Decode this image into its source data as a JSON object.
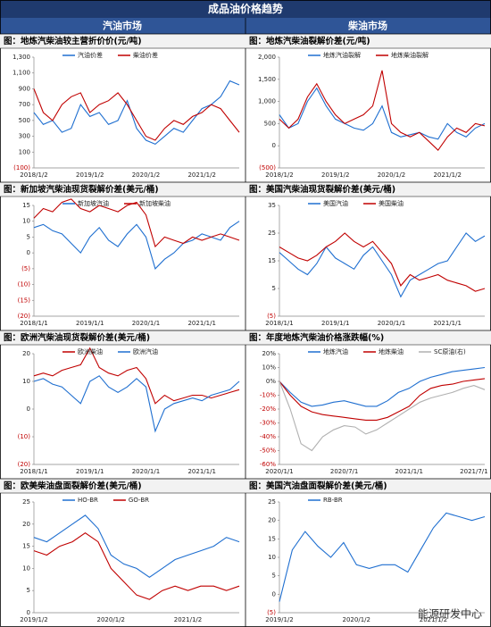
{
  "header": {
    "title": "成品油价格趋势",
    "columns": [
      "汽油市场",
      "柴油市场"
    ]
  },
  "watermark": "能源研发中心",
  "chart_data": [
    {
      "type": "line",
      "title": "图：地炼汽柴油较主营折价价(元/吨)",
      "categories": [
        "2018/1/2",
        null,
        null,
        null,
        null,
        null,
        "2019/1/2",
        null,
        null,
        null,
        null,
        null,
        "2020/1/2",
        null,
        null,
        null,
        null,
        null,
        "2021/1/2",
        null,
        null,
        null,
        null
      ],
      "series": [
        {
          "name": "汽油价差",
          "color": "#1f6fd0",
          "values": [
            600,
            450,
            500,
            350,
            400,
            700,
            550,
            600,
            450,
            500,
            750,
            400,
            250,
            200,
            300,
            400,
            350,
            500,
            650,
            700,
            800,
            1000,
            950
          ]
        },
        {
          "name": "柴油价差",
          "color": "#c00000",
          "values": [
            900,
            600,
            500,
            700,
            800,
            850,
            600,
            700,
            750,
            850,
            700,
            500,
            300,
            250,
            400,
            500,
            450,
            550,
            600,
            700,
            650,
            500,
            350
          ]
        }
      ],
      "ylim": [
        -100,
        1300
      ],
      "yticks": [
        {
          "value": -100,
          "label": "(100)"
        },
        100,
        300,
        500,
        700,
        900,
        {
          "value": 1100,
          "label": "1,100"
        },
        {
          "value": 1300,
          "label": "1,300"
        }
      ]
    },
    {
      "type": "line",
      "title": "图：地炼汽柴油裂解价差(元/吨)",
      "categories": [
        "2018/1/2",
        null,
        null,
        null,
        null,
        null,
        "2019/1/2",
        null,
        null,
        null,
        null,
        null,
        "2020/1/2",
        null,
        null,
        null,
        null,
        null,
        "2021/1/2",
        null,
        null,
        null,
        null
      ],
      "series": [
        {
          "name": "地炼汽油裂解",
          "color": "#1f6fd0",
          "values": [
            700,
            400,
            500,
            1000,
            1300,
            900,
            600,
            500,
            400,
            350,
            500,
            900,
            300,
            200,
            250,
            300,
            200,
            150,
            500,
            300,
            200,
            400,
            500
          ]
        },
        {
          "name": "地炼柴油裂解",
          "color": "#c00000",
          "values": [
            600,
            400,
            600,
            1100,
            1400,
            1000,
            700,
            500,
            600,
            700,
            900,
            1700,
            500,
            300,
            200,
            300,
            100,
            -100,
            200,
            400,
            300,
            500,
            450
          ]
        }
      ],
      "ylim": [
        -500,
        2000
      ],
      "yticks": [
        {
          "value": -500,
          "label": "(500)"
        },
        0,
        500,
        {
          "value": 1000,
          "label": "1,000"
        },
        {
          "value": 1500,
          "label": "1,500"
        },
        {
          "value": 2000,
          "label": "2,000"
        }
      ]
    },
    {
      "type": "line",
      "title": "图：新加坡汽柴油现货裂解价差(美元/桶)",
      "categories": [
        "2018/1/1",
        null,
        null,
        null,
        null,
        null,
        "2019/1/1",
        null,
        null,
        null,
        null,
        null,
        "2020/1/1",
        null,
        null,
        null,
        null,
        null,
        "2021/1/1",
        null,
        null,
        null,
        null
      ],
      "series": [
        {
          "name": "新加坡汽油",
          "color": "#1f6fd0",
          "values": [
            8,
            9,
            7,
            6,
            3,
            0,
            5,
            8,
            4,
            2,
            6,
            9,
            5,
            -5,
            -2,
            0,
            3,
            4,
            6,
            5,
            4,
            8,
            10
          ]
        },
        {
          "name": "新加坡柴油",
          "color": "#c00000",
          "values": [
            11,
            14,
            13,
            16,
            17,
            14,
            13,
            15,
            14,
            13,
            15,
            16,
            12,
            2,
            5,
            4,
            3,
            5,
            4,
            5,
            6,
            5,
            4
          ]
        }
      ],
      "ylim": [
        -20,
        15
      ],
      "yticks": [
        {
          "value": -20,
          "label": "(20)"
        },
        {
          "value": -15,
          "label": "(15)"
        },
        {
          "value": -10,
          "label": "(10)"
        },
        {
          "value": -5,
          "label": "(5)"
        },
        0,
        5,
        10,
        15
      ]
    },
    {
      "type": "line",
      "title": "图：美国汽柴油现货裂解价差(美元/桶)",
      "categories": [
        "2018/1/1",
        null,
        null,
        null,
        null,
        null,
        "2019/1/1",
        null,
        null,
        null,
        null,
        null,
        "2020/1/1",
        null,
        null,
        null,
        null,
        null,
        "2021/1/1",
        null,
        null,
        null,
        null
      ],
      "series": [
        {
          "name": "美国汽油",
          "color": "#1f6fd0",
          "values": [
            18,
            15,
            12,
            10,
            14,
            20,
            16,
            14,
            12,
            17,
            20,
            15,
            10,
            2,
            8,
            10,
            12,
            14,
            15,
            20,
            25,
            22,
            24
          ]
        },
        {
          "name": "美国柴油",
          "color": "#c00000",
          "values": [
            20,
            18,
            16,
            15,
            17,
            20,
            22,
            25,
            22,
            20,
            22,
            18,
            14,
            6,
            10,
            8,
            9,
            10,
            8,
            7,
            6,
            4,
            5
          ]
        }
      ],
      "ylim": [
        -5,
        35
      ],
      "yticks": [
        {
          "value": -5,
          "label": "(5)"
        },
        5,
        15,
        25,
        35
      ]
    },
    {
      "type": "line",
      "title": "图：欧洲汽柴油现货裂解价差(美元/桶)",
      "categories": [
        "2018/1/1",
        null,
        null,
        null,
        null,
        null,
        "2019/1/1",
        null,
        null,
        null,
        null,
        null,
        "2020/1/1",
        null,
        null,
        null,
        null,
        null,
        "2021/1/1",
        null,
        null,
        null,
        null
      ],
      "series": [
        {
          "name": "欧洲柴油",
          "color": "#c00000",
          "values": [
            12,
            13,
            12,
            14,
            15,
            16,
            22,
            15,
            13,
            12,
            14,
            15,
            11,
            2,
            5,
            3,
            4,
            5,
            5,
            4,
            5,
            6,
            7
          ]
        },
        {
          "name": "欧洲汽油",
          "color": "#1f6fd0",
          "values": [
            10,
            11,
            9,
            8,
            5,
            2,
            10,
            12,
            8,
            6,
            8,
            11,
            8,
            -8,
            0,
            2,
            3,
            4,
            3,
            5,
            6,
            7,
            10
          ]
        }
      ],
      "ylim": [
        -20,
        20
      ],
      "yticks": [
        {
          "value": -20,
          "label": "(20)"
        },
        {
          "value": -10,
          "label": "(10)"
        },
        0,
        10,
        20
      ]
    },
    {
      "type": "line",
      "title": "图：年度地炼汽柴油价格涨跌幅(%)",
      "categories": [
        "2020/1/1",
        null,
        null,
        null,
        null,
        null,
        "2020/7/1",
        null,
        null,
        null,
        null,
        null,
        "2021/1/1",
        null,
        null,
        null,
        null,
        null,
        "2021/7/1",
        null
      ],
      "series": [
        {
          "name": "地炼汽油",
          "color": "#1f6fd0",
          "values": [
            0,
            -8,
            -15,
            -18,
            -17,
            -15,
            -14,
            -16,
            -18,
            -18,
            -14,
            -8,
            -5,
            0,
            3,
            5,
            7,
            8,
            9,
            10
          ]
        },
        {
          "name": "地炼柴油",
          "color": "#c00000",
          "values": [
            0,
            -10,
            -18,
            -22,
            -24,
            -25,
            -26,
            -27,
            -28,
            -28,
            -26,
            -22,
            -18,
            -10,
            -5,
            -3,
            -2,
            0,
            1,
            2
          ]
        },
        {
          "name": "SC原油(右)",
          "color": "#b0b0b0",
          "values": [
            0,
            -20,
            -45,
            -50,
            -40,
            -35,
            -32,
            -33,
            -38,
            -35,
            -30,
            -25,
            -20,
            -15,
            -12,
            -10,
            -8,
            -5,
            -3,
            -6
          ]
        }
      ],
      "ylim": [
        -60,
        20
      ],
      "yticks": [
        {
          "value": -60,
          "label": "-60%"
        },
        {
          "value": -50,
          "label": "-50%"
        },
        {
          "value": -40,
          "label": "-40%"
        },
        {
          "value": -30,
          "label": "-30%"
        },
        {
          "value": -20,
          "label": "-20%"
        },
        {
          "value": -10,
          "label": "-10%"
        },
        {
          "value": 0,
          "label": "0%"
        },
        {
          "value": 10,
          "label": "10%"
        },
        {
          "value": 20,
          "label": "20%"
        }
      ]
    },
    {
      "type": "line",
      "title": "图：欧美柴油盘面裂解价差(美元/桶)",
      "categories": [
        "2019/1/2",
        null,
        null,
        null,
        null,
        null,
        "2020/1/2",
        null,
        null,
        null,
        null,
        null,
        "2021/1/2",
        null,
        null,
        null,
        null
      ],
      "series": [
        {
          "name": "HO-BR",
          "color": "#1f6fd0",
          "values": [
            17,
            16,
            18,
            20,
            22,
            19,
            13,
            11,
            10,
            8,
            10,
            12,
            13,
            14,
            15,
            17,
            16
          ]
        },
        {
          "name": "GO-BR",
          "color": "#c00000",
          "values": [
            14,
            13,
            15,
            16,
            18,
            16,
            10,
            7,
            4,
            3,
            5,
            6,
            5,
            6,
            6,
            5,
            6
          ]
        }
      ],
      "ylim": [
        0,
        25
      ],
      "yticks": [
        0,
        5,
        10,
        15,
        20,
        25
      ]
    },
    {
      "type": "line",
      "title": "图：美国汽油盘面裂解价差(美元/桶)",
      "categories": [
        "2019/1/2",
        null,
        null,
        null,
        null,
        null,
        "2020/1/2",
        null,
        null,
        null,
        null,
        null,
        "2021/1/2",
        null,
        null,
        null,
        null
      ],
      "series": [
        {
          "name": "RB-BR",
          "color": "#1f6fd0",
          "values": [
            -2,
            12,
            17,
            13,
            10,
            14,
            8,
            7,
            8,
            8,
            6,
            12,
            18,
            22,
            21,
            20,
            21
          ]
        }
      ],
      "ylim": [
        -5,
        25
      ],
      "yticks": [
        {
          "value": -5,
          "label": "(5)"
        },
        0,
        5,
        10,
        15,
        20,
        25
      ]
    }
  ]
}
